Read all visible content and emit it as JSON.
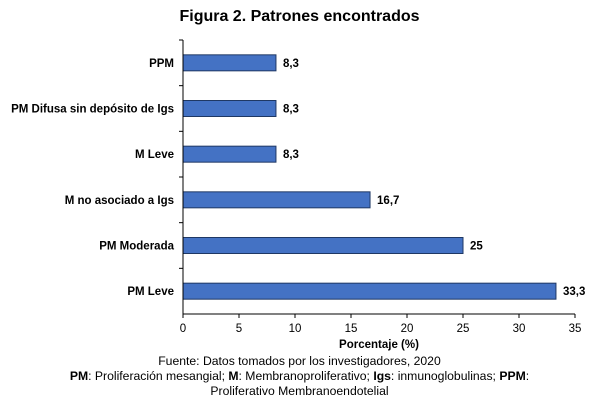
{
  "chart_data": {
    "type": "bar",
    "orientation": "horizontal",
    "title": "Figura 2. Patrones encontrados",
    "categories": [
      "PPM",
      "PM Difusa sin depósito de Igs",
      "M Leve",
      "M no asociado a Igs",
      "PM Moderada",
      "PM Leve"
    ],
    "values": [
      8.3,
      8.3,
      8.3,
      16.7,
      25,
      33.3
    ],
    "value_labels": [
      "8,3",
      "8,3",
      "8,3",
      "16,7",
      "25",
      "33,3"
    ],
    "xlabel": "Porcentaje (%)",
    "ylabel": "",
    "xlim": [
      0,
      35
    ],
    "xticks": [
      0,
      5,
      10,
      15,
      20,
      25,
      30,
      35
    ],
    "grid": false,
    "bar_color": "#4472C4",
    "bar_edge_color": "#1F3864"
  },
  "footer": {
    "source": "Fuente: Datos tomados por los investigadores, 2020",
    "abbrev_pm_key": "PM",
    "abbrev_pm_text": ": Proliferación mesangial; ",
    "abbrev_m_key": "M",
    "abbrev_m_text": ": Membranoproliferativo; ",
    "abbrev_igs_key": "Igs",
    "abbrev_igs_text": ": inmunoglobulinas; ",
    "abbrev_ppm_key": "PPM",
    "abbrev_ppm_text": ":",
    "abbrev_ppm_cont": "Proliferativo Membranoendotelial"
  }
}
